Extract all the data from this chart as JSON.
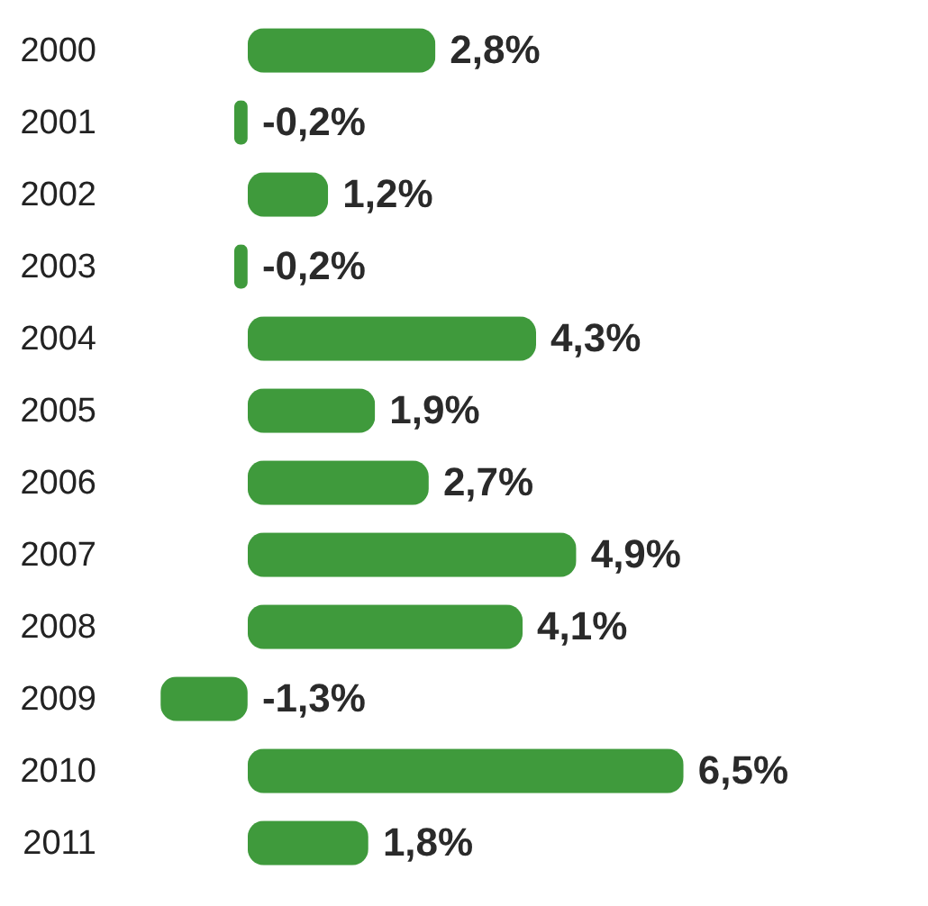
{
  "chart_data": {
    "type": "bar",
    "orientation": "horizontal",
    "categories": [
      "2000",
      "2001",
      "2002",
      "2003",
      "2004",
      "2005",
      "2006",
      "2007",
      "2008",
      "2009",
      "2010",
      "2011"
    ],
    "values": [
      2.8,
      -0.2,
      1.2,
      -0.2,
      4.3,
      1.9,
      2.7,
      4.9,
      4.1,
      -1.3,
      6.5,
      1.8
    ],
    "value_labels": [
      "2,8%",
      "-0,2%",
      "1,2%",
      "-0,2%",
      "4,3%",
      "1,9%",
      "2,7%",
      "4,9%",
      "4,1%",
      "-1,3%",
      "6,5%",
      "1,8%"
    ],
    "color": "#3f9a3c"
  }
}
